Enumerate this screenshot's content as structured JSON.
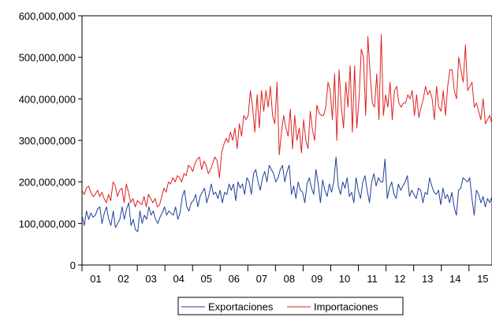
{
  "chart_data": {
    "type": "line",
    "title": "",
    "xlabel": "",
    "ylabel": "",
    "ylim": [
      0,
      600000000
    ],
    "y_ticks": [
      {
        "value": 0,
        "label": "0"
      },
      {
        "value": 100000000,
        "label": "100,000,000"
      },
      {
        "value": 200000000,
        "label": "200,000,000"
      },
      {
        "value": 300000000,
        "label": "300,000,000"
      },
      {
        "value": 400000000,
        "label": "400,000,000"
      },
      {
        "value": 500000000,
        "label": "500,000,000"
      },
      {
        "value": 600000000,
        "label": "600,000,000"
      }
    ],
    "x_tick_labels": [
      "01",
      "02",
      "03",
      "04",
      "05",
      "06",
      "07",
      "08",
      "09",
      "10",
      "11",
      "12",
      "13",
      "14",
      "15"
    ],
    "x_range_months": [
      0,
      178
    ],
    "grid": false,
    "legend_position": "bottom-center",
    "series": [
      {
        "name": "Exportaciones",
        "color": "#1f3f99",
        "values": [
          120,
          95,
          130,
          110,
          125,
          115,
          120,
          135,
          140,
          100,
          125,
          140,
          110,
          95,
          130,
          90,
          100,
          110,
          140,
          110,
          135,
          150,
          95,
          110,
          85,
          80,
          130,
          100,
          120,
          110,
          140,
          120,
          130,
          110,
          100,
          115,
          125,
          140,
          120,
          130,
          125,
          120,
          140,
          110,
          125,
          165,
          180,
          140,
          130,
          150,
          155,
          170,
          140,
          165,
          175,
          185,
          150,
          170,
          195,
          170,
          175,
          160,
          180,
          150,
          175,
          170,
          195,
          180,
          195,
          155,
          200,
          185,
          195,
          170,
          210,
          200,
          170,
          220,
          230,
          200,
          180,
          210,
          225,
          200,
          240,
          230,
          220,
          200,
          210,
          230,
          240,
          200,
          225,
          240,
          170,
          190,
          160,
          200,
          180,
          175,
          150,
          195,
          210,
          185,
          170,
          230,
          195,
          150,
          205,
          180,
          165,
          195,
          175,
          200,
          260,
          190,
          170,
          200,
          185,
          210,
          165,
          175,
          150,
          210,
          180,
          160,
          200,
          215,
          180,
          150,
          200,
          220,
          190,
          210,
          200,
          200,
          255,
          160,
          185,
          200,
          170,
          160,
          195,
          180,
          190,
          200,
          215,
          165,
          180,
          170,
          160,
          185,
          180,
          150,
          175,
          170,
          210,
          190,
          175,
          170,
          180,
          145,
          185,
          160,
          170,
          150,
          175,
          140,
          120,
          180,
          185,
          210,
          205,
          200,
          210,
          160,
          120,
          180,
          170,
          150,
          165,
          140,
          160,
          150,
          165
        ]
      },
      {
        "name": "Importaciones",
        "color": "#e02020",
        "values": [
          180,
          170,
          185,
          190,
          175,
          165,
          170,
          180,
          165,
          175,
          160,
          150,
          170,
          155,
          200,
          190,
          165,
          180,
          185,
          150,
          195,
          175,
          150,
          160,
          140,
          155,
          150,
          145,
          165,
          140,
          170,
          160,
          150,
          160,
          140,
          145,
          165,
          185,
          175,
          200,
          195,
          210,
          200,
          215,
          210,
          200,
          220,
          215,
          240,
          235,
          225,
          245,
          255,
          260,
          230,
          250,
          240,
          220,
          230,
          245,
          260,
          250,
          210,
          270,
          290,
          305,
          295,
          320,
          300,
          330,
          280,
          340,
          310,
          360,
          350,
          360,
          420,
          380,
          320,
          410,
          330,
          420,
          370,
          420,
          380,
          430,
          360,
          340,
          440,
          265,
          320,
          360,
          330,
          310,
          375,
          280,
          360,
          300,
          330,
          270,
          350,
          300,
          280,
          370,
          325,
          300,
          385,
          365,
          360,
          360,
          380,
          440,
          420,
          350,
          460,
          300,
          470,
          380,
          330,
          440,
          380,
          480,
          320,
          480,
          330,
          400,
          520,
          500,
          360,
          550,
          460,
          390,
          380,
          460,
          350,
          555,
          360,
          410,
          380,
          440,
          350,
          420,
          430,
          390,
          380,
          390,
          390,
          410,
          400,
          420,
          360,
          410,
          355,
          380,
          400,
          430,
          410,
          420,
          400,
          350,
          430,
          380,
          370,
          420,
          360,
          430,
          470,
          470,
          420,
          400,
          500,
          470,
          440,
          530,
          420,
          430,
          440,
          380,
          390,
          370,
          350,
          400,
          340,
          350,
          360,
          340
        ]
      }
    ],
    "value_unit_multiplier": 1000000
  },
  "legend": {
    "items": [
      "Exportaciones",
      "Importaciones"
    ]
  }
}
